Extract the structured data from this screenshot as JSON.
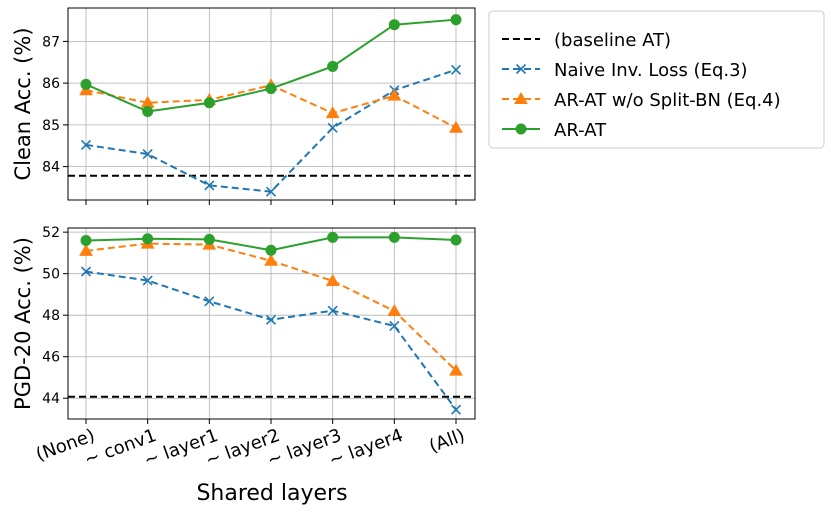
{
  "chart_data": [
    {
      "type": "line",
      "categories": [
        "(None)",
        "~ conv1",
        "~ layer1",
        "~ layer2",
        "~ layer3",
        "~ layer4",
        "(All)"
      ],
      "ylabel": "Clean Acc. (%)",
      "xlabel": "",
      "ylim": [
        83.2,
        87.8
      ],
      "yticks": [
        84,
        85,
        86,
        87
      ],
      "grid": true,
      "baseline": {
        "name": "(baseline AT)",
        "value": 83.78,
        "color": "#000000"
      },
      "series": [
        {
          "name": "Naive Inv. Loss (Eq.3)",
          "color": "#1f77b4",
          "marker": "x",
          "dashed": true,
          "values": [
            84.52,
            84.3,
            83.55,
            83.4,
            84.93,
            85.83,
            86.32
          ]
        },
        {
          "name": "AR-AT w/o Split-BN (Eq.4)",
          "color": "#ff7f0e",
          "marker": "triangle",
          "dashed": true,
          "values": [
            85.83,
            85.53,
            85.6,
            85.95,
            85.28,
            85.7,
            84.93
          ]
        },
        {
          "name": "AR-AT",
          "color": "#2ca02c",
          "marker": "circle",
          "dashed": false,
          "values": [
            85.97,
            85.32,
            85.53,
            85.87,
            86.4,
            87.4,
            87.52
          ]
        }
      ]
    },
    {
      "type": "line",
      "categories": [
        "(None)",
        "~ conv1",
        "~ layer1",
        "~ layer2",
        "~ layer3",
        "~ layer4",
        "(All)"
      ],
      "ylabel": "PGD-20 Acc. (%)",
      "xlabel": "Shared layers",
      "ylim": [
        43.0,
        52.2
      ],
      "yticks": [
        44,
        46,
        48,
        50,
        52
      ],
      "grid": true,
      "baseline": {
        "name": "(baseline AT)",
        "value": 44.07,
        "color": "#000000"
      },
      "series": [
        {
          "name": "Naive Inv. Loss (Eq.3)",
          "color": "#1f77b4",
          "marker": "x",
          "dashed": true,
          "values": [
            50.1,
            49.67,
            48.67,
            47.78,
            48.22,
            47.48,
            43.45
          ]
        },
        {
          "name": "AR-AT w/o Split-BN (Eq.4)",
          "color": "#ff7f0e",
          "marker": "triangle",
          "dashed": true,
          "values": [
            51.1,
            51.45,
            51.4,
            50.62,
            49.65,
            48.2,
            45.33
          ]
        },
        {
          "name": "AR-AT",
          "color": "#2ca02c",
          "marker": "circle",
          "dashed": false,
          "values": [
            51.6,
            51.68,
            51.65,
            51.13,
            51.75,
            51.75,
            51.62
          ]
        }
      ]
    }
  ],
  "legend": {
    "placement": "right",
    "entries": [
      "(baseline AT)",
      "Naive Inv. Loss (Eq.3)",
      "AR-AT w/o Split-BN (Eq.4)",
      "AR-AT"
    ]
  }
}
